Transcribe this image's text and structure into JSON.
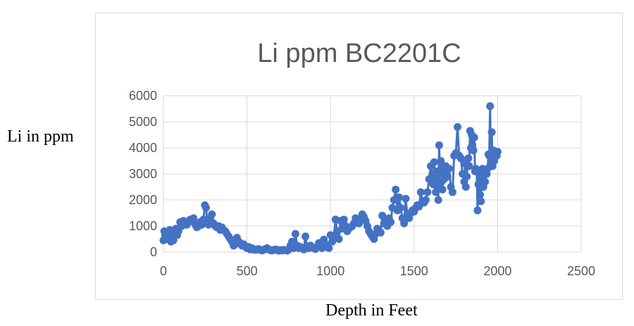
{
  "labels": {
    "y_axis_outside": "Li in ppm",
    "x_axis_outside": "Depth in Feet"
  },
  "colors": {
    "series": "#4472C4",
    "grid": "#d9d9d9",
    "tick_text": "#595959",
    "title": "#595959"
  },
  "chart_data": {
    "type": "scatter",
    "title": "Li ppm BC2201C",
    "xlabel": "Depth in Feet",
    "ylabel": "Li in ppm",
    "xlim": [
      0,
      2500
    ],
    "ylim": [
      0,
      6000
    ],
    "xticks": [
      0,
      500,
      1000,
      1500,
      2000,
      2500
    ],
    "yticks": [
      0,
      1000,
      2000,
      3000,
      4000,
      5000,
      6000
    ],
    "grid": true,
    "legend": "none",
    "connected": true,
    "series": [
      {
        "marker": "circle",
        "points": [
          [
            0,
            450
          ],
          [
            5,
            800
          ],
          [
            10,
            650
          ],
          [
            18,
            500
          ],
          [
            25,
            700
          ],
          [
            30,
            550
          ],
          [
            38,
            850
          ],
          [
            45,
            400
          ],
          [
            52,
            600
          ],
          [
            60,
            450
          ],
          [
            68,
            700
          ],
          [
            75,
            900
          ],
          [
            82,
            650
          ],
          [
            90,
            800
          ],
          [
            100,
            1150
          ],
          [
            110,
            1000
          ],
          [
            120,
            1200
          ],
          [
            130,
            1100
          ],
          [
            140,
            1050
          ],
          [
            150,
            1150
          ],
          [
            160,
            1250
          ],
          [
            170,
            1200
          ],
          [
            180,
            1300
          ],
          [
            190,
            1050
          ],
          [
            200,
            950
          ],
          [
            210,
            1000
          ],
          [
            220,
            1150
          ],
          [
            230,
            1050
          ],
          [
            240,
            1250
          ],
          [
            248,
            1800
          ],
          [
            255,
            1700
          ],
          [
            262,
            1200
          ],
          [
            270,
            1050
          ],
          [
            280,
            1300
          ],
          [
            290,
            1450
          ],
          [
            300,
            1100
          ],
          [
            310,
            1000
          ],
          [
            320,
            950
          ],
          [
            330,
            1000
          ],
          [
            340,
            850
          ],
          [
            350,
            950
          ],
          [
            360,
            850
          ],
          [
            370,
            800
          ],
          [
            380,
            700
          ],
          [
            390,
            600
          ],
          [
            400,
            500
          ],
          [
            410,
            400
          ],
          [
            420,
            250
          ],
          [
            430,
            300
          ],
          [
            440,
            550
          ],
          [
            450,
            400
          ],
          [
            460,
            350
          ],
          [
            470,
            250
          ],
          [
            480,
            300
          ],
          [
            490,
            200
          ],
          [
            500,
            150
          ],
          [
            510,
            200
          ],
          [
            520,
            100
          ],
          [
            530,
            150
          ],
          [
            540,
            100
          ],
          [
            550,
            80
          ],
          [
            560,
            100
          ],
          [
            570,
            120
          ],
          [
            580,
            80
          ],
          [
            590,
            60
          ],
          [
            600,
            90
          ],
          [
            610,
            120
          ],
          [
            620,
            150
          ],
          [
            630,
            100
          ],
          [
            640,
            70
          ],
          [
            650,
            60
          ],
          [
            660,
            80
          ],
          [
            670,
            100
          ],
          [
            680,
            90
          ],
          [
            690,
            50
          ],
          [
            700,
            80
          ],
          [
            710,
            60
          ],
          [
            720,
            90
          ],
          [
            730,
            70
          ],
          [
            740,
            50
          ],
          [
            750,
            100
          ],
          [
            760,
            250
          ],
          [
            770,
            400
          ],
          [
            780,
            150
          ],
          [
            790,
            700
          ],
          [
            800,
            250
          ],
          [
            810,
            150
          ],
          [
            820,
            200
          ],
          [
            830,
            150
          ],
          [
            840,
            100
          ],
          [
            850,
            600
          ],
          [
            860,
            200
          ],
          [
            870,
            150
          ],
          [
            880,
            250
          ],
          [
            890,
            180
          ],
          [
            900,
            150
          ],
          [
            910,
            120
          ],
          [
            920,
            200
          ],
          [
            930,
            350
          ],
          [
            940,
            250
          ],
          [
            950,
            150
          ],
          [
            960,
            480
          ],
          [
            970,
            300
          ],
          [
            980,
            200
          ],
          [
            990,
            150
          ],
          [
            1000,
            650
          ],
          [
            1010,
            400
          ],
          [
            1020,
            550
          ],
          [
            1030,
            1250
          ],
          [
            1040,
            800
          ],
          [
            1050,
            500
          ],
          [
            1060,
            1200
          ],
          [
            1070,
            900
          ],
          [
            1080,
            1250
          ],
          [
            1090,
            1000
          ],
          [
            1100,
            800
          ],
          [
            1110,
            900
          ],
          [
            1120,
            950
          ],
          [
            1130,
            1000
          ],
          [
            1140,
            1100
          ],
          [
            1150,
            1300
          ],
          [
            1160,
            1200
          ],
          [
            1170,
            1100
          ],
          [
            1180,
            1250
          ],
          [
            1190,
            1450
          ],
          [
            1200,
            1350
          ],
          [
            1210,
            1200
          ],
          [
            1220,
            1000
          ],
          [
            1230,
            800
          ],
          [
            1240,
            700
          ],
          [
            1250,
            600
          ],
          [
            1260,
            500
          ],
          [
            1270,
            700
          ],
          [
            1280,
            900
          ],
          [
            1290,
            800
          ],
          [
            1300,
            750
          ],
          [
            1310,
            1400
          ],
          [
            1320,
            1100
          ],
          [
            1330,
            1200
          ],
          [
            1340,
            1000
          ],
          [
            1350,
            1300
          ],
          [
            1360,
            1150
          ],
          [
            1370,
            1700
          ],
          [
            1380,
            2000
          ],
          [
            1390,
            2400
          ],
          [
            1400,
            1600
          ],
          [
            1410,
            2100
          ],
          [
            1420,
            1700
          ],
          [
            1430,
            1300
          ],
          [
            1440,
            1100
          ],
          [
            1450,
            2050
          ],
          [
            1460,
            1400
          ],
          [
            1470,
            1300
          ],
          [
            1480,
            1500
          ],
          [
            1490,
            1600
          ],
          [
            1500,
            1550
          ],
          [
            1510,
            1700
          ],
          [
            1520,
            1800
          ],
          [
            1530,
            1750
          ],
          [
            1540,
            2300
          ],
          [
            1550,
            1900
          ],
          [
            1560,
            1900
          ],
          [
            1570,
            2000
          ],
          [
            1580,
            2300
          ],
          [
            1590,
            2800
          ],
          [
            1600,
            3300
          ],
          [
            1605,
            2700
          ],
          [
            1610,
            3000
          ],
          [
            1615,
            2600
          ],
          [
            1620,
            3450
          ],
          [
            1625,
            2800
          ],
          [
            1630,
            2300
          ],
          [
            1635,
            3100
          ],
          [
            1640,
            2500
          ],
          [
            1645,
            2000
          ],
          [
            1650,
            4100
          ],
          [
            1655,
            3000
          ],
          [
            1660,
            3500
          ],
          [
            1665,
            2700
          ],
          [
            1670,
            2400
          ],
          [
            1675,
            3200
          ],
          [
            1680,
            2800
          ],
          [
            1685,
            3000
          ],
          [
            1690,
            3300
          ],
          [
            1700,
            2900
          ],
          [
            1710,
            3200
          ],
          [
            1720,
            2500
          ],
          [
            1730,
            2300
          ],
          [
            1740,
            3700
          ],
          [
            1750,
            3800
          ],
          [
            1760,
            4800
          ],
          [
            1770,
            3700
          ],
          [
            1780,
            3600
          ],
          [
            1790,
            3000
          ],
          [
            1800,
            2700
          ],
          [
            1805,
            3400
          ],
          [
            1810,
            2500
          ],
          [
            1815,
            2900
          ],
          [
            1820,
            3300
          ],
          [
            1825,
            3600
          ],
          [
            1830,
            3300
          ],
          [
            1835,
            4650
          ],
          [
            1840,
            4000
          ],
          [
            1845,
            4500
          ],
          [
            1850,
            4100
          ],
          [
            1855,
            3900
          ],
          [
            1860,
            4400
          ],
          [
            1865,
            3100
          ],
          [
            1870,
            3200
          ],
          [
            1875,
            3100
          ],
          [
            1880,
            1600
          ],
          [
            1885,
            2600
          ],
          [
            1890,
            3000
          ],
          [
            1895,
            2200
          ],
          [
            1900,
            1950
          ],
          [
            1905,
            3100
          ],
          [
            1910,
            3200
          ],
          [
            1915,
            2500
          ],
          [
            1920,
            3000
          ],
          [
            1925,
            2700
          ],
          [
            1930,
            3100
          ],
          [
            1935,
            3000
          ],
          [
            1940,
            3200
          ],
          [
            1945,
            3750
          ],
          [
            1950,
            3700
          ],
          [
            1955,
            5600
          ],
          [
            1960,
            3400
          ],
          [
            1965,
            4600
          ],
          [
            1970,
            3300
          ],
          [
            1975,
            3900
          ],
          [
            1980,
            3500
          ],
          [
            1985,
            3750
          ],
          [
            1990,
            3800
          ],
          [
            1995,
            3700
          ],
          [
            2000,
            3850
          ]
        ]
      }
    ]
  }
}
